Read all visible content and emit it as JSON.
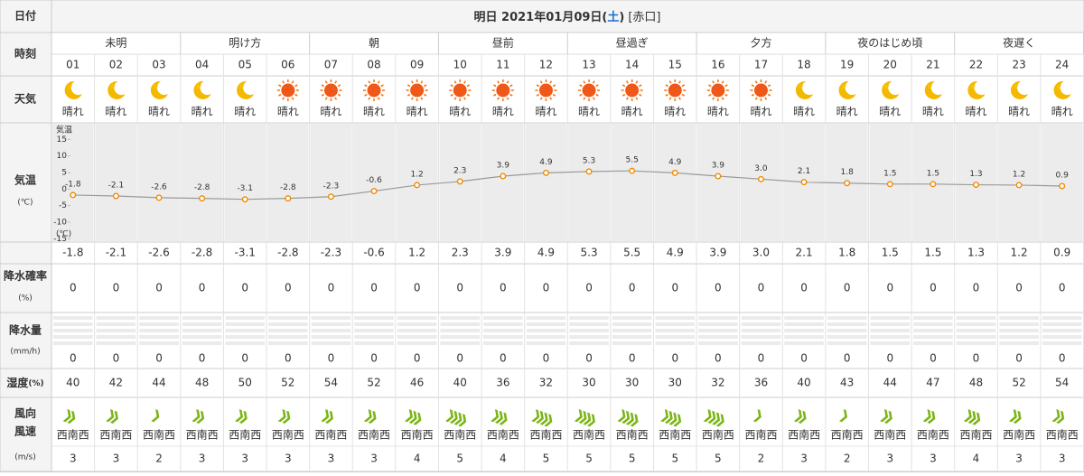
{
  "header": {
    "date_label": "日付",
    "title_prefix": "明日 2021年01月09日(",
    "weekday": "土",
    "title_suffix": ")",
    "rokuyo": "[赤口]"
  },
  "row_labels": {
    "time": "時刻",
    "weather": "天気",
    "temp": "気温",
    "temp_unit": "(℃)",
    "pop": "降水確率",
    "pop_unit": "(%)",
    "precip": "降水量",
    "precip_unit": "(mm/h)",
    "humidity": "湿度",
    "humidity_unit": "(%)",
    "wind_dir": "風向",
    "wind_speed": "風速",
    "wind_unit": "(m/s)"
  },
  "periods": [
    {
      "label": "未明",
      "hours": [
        "01",
        "02",
        "03"
      ]
    },
    {
      "label": "明け方",
      "hours": [
        "04",
        "05",
        "06"
      ]
    },
    {
      "label": "朝",
      "hours": [
        "07",
        "08",
        "09"
      ]
    },
    {
      "label": "昼前",
      "hours": [
        "10",
        "11",
        "12"
      ]
    },
    {
      "label": "昼過ぎ",
      "hours": [
        "13",
        "14",
        "15"
      ]
    },
    {
      "label": "夕方",
      "hours": [
        "16",
        "17",
        "18"
      ]
    },
    {
      "label": "夜のはじめ頃",
      "hours": [
        "19",
        "20",
        "21"
      ]
    },
    {
      "label": "夜遅く",
      "hours": [
        "22",
        "23",
        "24"
      ]
    }
  ],
  "weather": [
    "晴れ",
    "晴れ",
    "晴れ",
    "晴れ",
    "晴れ",
    "晴れ",
    "晴れ",
    "晴れ",
    "晴れ",
    "晴れ",
    "晴れ",
    "晴れ",
    "晴れ",
    "晴れ",
    "晴れ",
    "晴れ",
    "晴れ",
    "晴れ",
    "晴れ",
    "晴れ",
    "晴れ",
    "晴れ",
    "晴れ",
    "晴れ"
  ],
  "weather_icons": [
    "moon",
    "moon",
    "moon",
    "moon",
    "moon",
    "sun",
    "sun",
    "sun",
    "sun",
    "sun",
    "sun",
    "sun",
    "sun",
    "sun",
    "sun",
    "sun",
    "sun",
    "moon",
    "moon",
    "moon",
    "moon",
    "moon",
    "moon",
    "moon"
  ],
  "temperature": [
    -1.8,
    -2.1,
    -2.6,
    -2.8,
    -3.1,
    -2.8,
    -2.3,
    -0.6,
    1.2,
    2.3,
    3.9,
    4.9,
    5.3,
    5.5,
    4.9,
    3.9,
    3.0,
    2.1,
    1.8,
    1.5,
    1.5,
    1.3,
    1.2,
    0.9
  ],
  "temperature_labels": [
    "-1.8",
    "-2.1",
    "-2.6",
    "-2.8",
    "-3.1",
    "-2.8",
    "-2.3",
    "-0.6",
    "1.2",
    "2.3",
    "3.9",
    "4.9",
    "5.3",
    "5.5",
    "4.9",
    "3.9",
    "3.0",
    "2.1",
    "1.8",
    "1.5",
    "1.5",
    "1.3",
    "1.2",
    "0.9"
  ],
  "temp_chart": {
    "axis_label": "気温",
    "unit_label": "(℃)",
    "ylim": [
      -16,
      20
    ],
    "yticks": [
      15,
      10,
      5,
      0,
      -5,
      -10,
      -15
    ],
    "line_color": "#9a9a9a",
    "marker_color": "#f08c00"
  },
  "precip_probability": [
    0,
    0,
    0,
    0,
    0,
    0,
    0,
    0,
    0,
    0,
    0,
    0,
    0,
    0,
    0,
    0,
    0,
    0,
    0,
    0,
    0,
    0,
    0,
    0
  ],
  "precipitation": [
    0,
    0,
    0,
    0,
    0,
    0,
    0,
    0,
    0,
    0,
    0,
    0,
    0,
    0,
    0,
    0,
    0,
    0,
    0,
    0,
    0,
    0,
    0,
    0
  ],
  "humidity": [
    40,
    42,
    44,
    48,
    50,
    52,
    54,
    52,
    46,
    40,
    36,
    32,
    30,
    30,
    30,
    32,
    36,
    40,
    43,
    44,
    47,
    48,
    52,
    54
  ],
  "wind_direction": [
    "西南西",
    "西南西",
    "西南西",
    "西南西",
    "西南西",
    "西南西",
    "西南西",
    "西南西",
    "西南西",
    "西南西",
    "西南西",
    "西南西",
    "西南西",
    "西南西",
    "西南西",
    "西南西",
    "西南西",
    "西南西",
    "西南西",
    "西南西",
    "西南西",
    "西南西",
    "西南西",
    "西南西"
  ],
  "wind_speed": [
    3,
    3,
    2,
    3,
    3,
    3,
    3,
    3,
    4,
    5,
    4,
    5,
    5,
    5,
    5,
    5,
    2,
    3,
    2,
    3,
    3,
    4,
    3,
    3
  ],
  "wind_color": "#7cb518"
}
